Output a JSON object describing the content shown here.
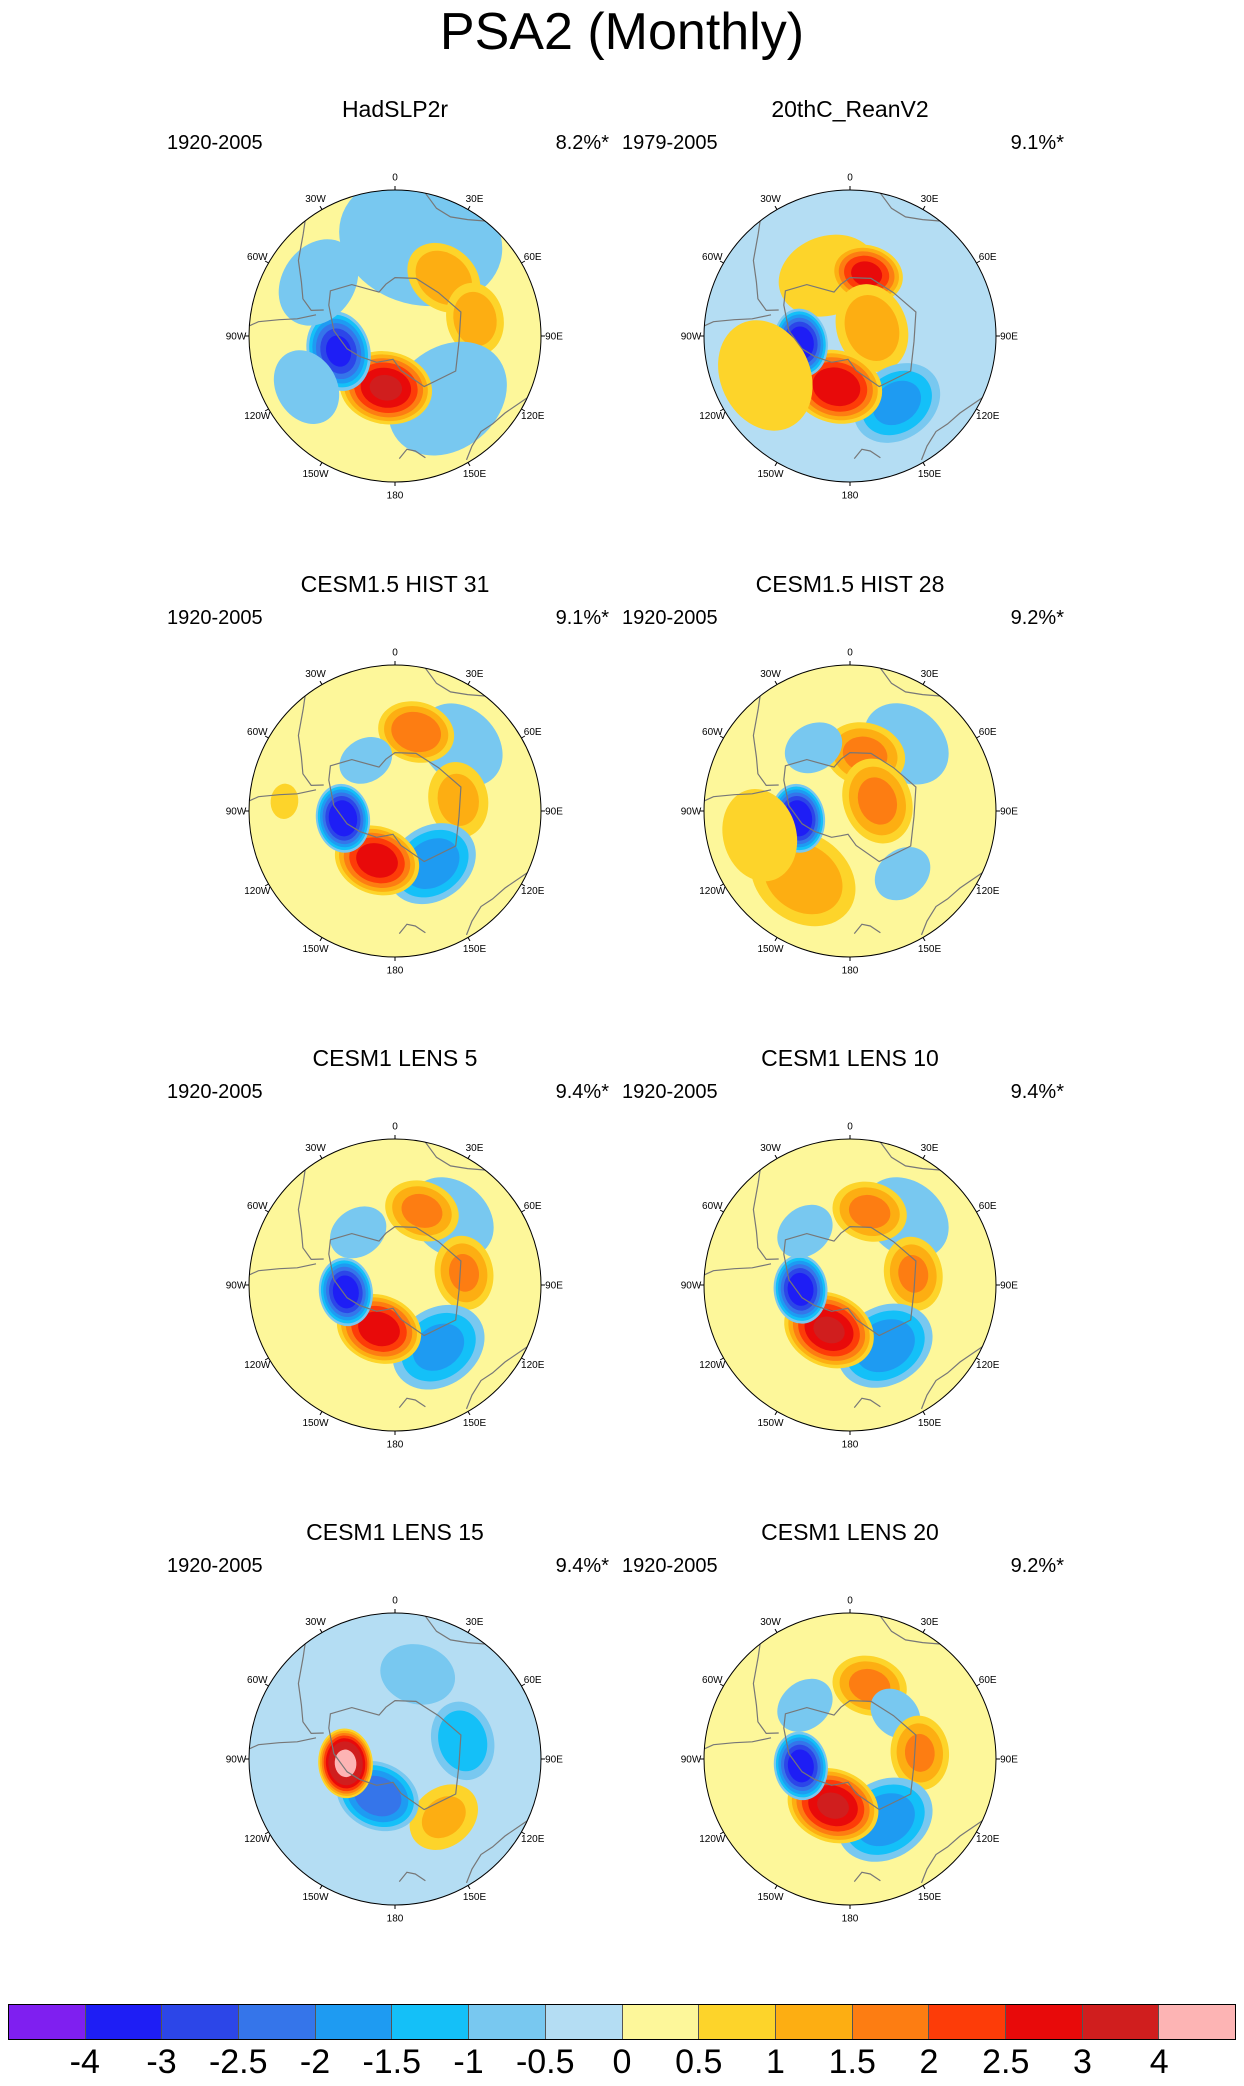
{
  "title": "PSA2 (Monthly)",
  "longitude_labels": [
    "0",
    "30E",
    "60E",
    "90E",
    "120E",
    "150E",
    "180",
    "150W",
    "120W",
    "90W",
    "60W",
    "30W"
  ],
  "colors": {
    "levels": [
      "#7f1ff0",
      "#1e1ef5",
      "#2c46e8",
      "#3575ea",
      "#1e9bf2",
      "#14c0f8",
      "#78c8f0",
      "#b4ddf3",
      "#fdf79a",
      "#fdd42a",
      "#fdae12",
      "#fd7d12",
      "#fd3c08",
      "#e80a0a",
      "#d01e1e",
      "#fdb4b4"
    ],
    "coastline": "#777777",
    "outline": "#000000"
  },
  "chart_data": [
    {
      "type": "heatmap",
      "projection": "south-polar-stereographic",
      "title": "HadSLP2r",
      "period": "1920-2005",
      "variance_explained": "8.2%*",
      "background_level": 0.25,
      "anomalies": [
        {
          "lon_deg": 15,
          "colat_deg": 34,
          "value": -0.7,
          "extent_deg": 34
        },
        {
          "lon_deg": 40,
          "colat_deg": 26,
          "value": 1.4,
          "extent_deg": 14
        },
        {
          "lon_deg": 78,
          "colat_deg": 28,
          "value": 1.3,
          "extent_deg": 13
        },
        {
          "lon_deg": 140,
          "colat_deg": 28,
          "value": -0.6,
          "extent_deg": 28
        },
        {
          "lon_deg": 190,
          "colat_deg": 18,
          "value": 3.0,
          "extent_deg": 15
        },
        {
          "lon_deg": 255,
          "colat_deg": 20,
          "value": -3.1,
          "extent_deg": 13
        },
        {
          "lon_deg": 305,
          "colat_deg": 32,
          "value": -0.6,
          "extent_deg": 20
        },
        {
          "lon_deg": 240,
          "colat_deg": 35,
          "value": -0.5,
          "extent_deg": 18
        }
      ]
    },
    {
      "type": "heatmap",
      "projection": "south-polar-stereographic",
      "title": "20thC_ReanV2",
      "period": "1979-2005",
      "variance_explained": "9.1%*",
      "background_level": -0.25,
      "anomalies": [
        {
          "lon_deg": 340,
          "colat_deg": 22,
          "value": 0.8,
          "extent_deg": 20
        },
        {
          "lon_deg": 15,
          "colat_deg": 22,
          "value": 2.6,
          "extent_deg": 12
        },
        {
          "lon_deg": 70,
          "colat_deg": 8,
          "value": 1.3,
          "extent_deg": 16
        },
        {
          "lon_deg": 145,
          "colat_deg": 28,
          "value": -1.6,
          "extent_deg": 16
        },
        {
          "lon_deg": 195,
          "colat_deg": 18,
          "value": 2.9,
          "extent_deg": 15
        },
        {
          "lon_deg": 262,
          "colat_deg": 17,
          "value": -3.4,
          "extent_deg": 11
        },
        {
          "lon_deg": 245,
          "colat_deg": 32,
          "value": 0.9,
          "extent_deg": 22
        }
      ]
    },
    {
      "type": "heatmap",
      "projection": "south-polar-stereographic",
      "title": "CESM1.5 HIST 31",
      "period": "1920-2005",
      "variance_explained": "9.1%*",
      "background_level": 0.25,
      "anomalies": [
        {
          "lon_deg": 45,
          "colat_deg": 32,
          "value": -0.6,
          "extent_deg": 20
        },
        {
          "lon_deg": 15,
          "colat_deg": 28,
          "value": 1.9,
          "extent_deg": 13
        },
        {
          "lon_deg": 80,
          "colat_deg": 22,
          "value": 1.1,
          "extent_deg": 14
        },
        {
          "lon_deg": 145,
          "colat_deg": 22,
          "value": -1.8,
          "extent_deg": 16
        },
        {
          "lon_deg": 200,
          "colat_deg": 18,
          "value": 2.8,
          "extent_deg": 14
        },
        {
          "lon_deg": 262,
          "colat_deg": 18,
          "value": -3.6,
          "extent_deg": 11
        },
        {
          "lon_deg": 330,
          "colat_deg": 20,
          "value": -0.6,
          "extent_deg": 12
        },
        {
          "lon_deg": 275,
          "colat_deg": 38,
          "value": 0.8,
          "extent_deg": 7
        }
      ]
    },
    {
      "type": "heatmap",
      "projection": "south-polar-stereographic",
      "title": "CESM1.5 HIST 28",
      "period": "1920-2005",
      "variance_explained": "9.2%*",
      "background_level": 0.25,
      "anomalies": [
        {
          "lon_deg": 40,
          "colat_deg": 30,
          "value": -0.6,
          "extent_deg": 20
        },
        {
          "lon_deg": 15,
          "colat_deg": 20,
          "value": 1.6,
          "extent_deg": 14
        },
        {
          "lon_deg": 70,
          "colat_deg": 10,
          "value": 1.6,
          "extent_deg": 15
        },
        {
          "lon_deg": 140,
          "colat_deg": 28,
          "value": -0.8,
          "extent_deg": 12
        },
        {
          "lon_deg": 215,
          "colat_deg": 28,
          "value": 1.3,
          "extent_deg": 20
        },
        {
          "lon_deg": 262,
          "colat_deg": 18,
          "value": -3.6,
          "extent_deg": 11
        },
        {
          "lon_deg": 330,
          "colat_deg": 25,
          "value": -0.5,
          "extent_deg": 14
        },
        {
          "lon_deg": 255,
          "colat_deg": 32,
          "value": 0.9,
          "extent_deg": 18
        }
      ]
    },
    {
      "type": "heatmap",
      "projection": "south-polar-stereographic",
      "title": "CESM1 LENS 5",
      "period": "1920-2005",
      "variance_explained": "9.4%*",
      "background_level": 0.25,
      "anomalies": [
        {
          "lon_deg": 40,
          "colat_deg": 30,
          "value": -0.6,
          "extent_deg": 20
        },
        {
          "lon_deg": 20,
          "colat_deg": 27,
          "value": 1.6,
          "extent_deg": 13
        },
        {
          "lon_deg": 80,
          "colat_deg": 24,
          "value": 1.5,
          "extent_deg": 13
        },
        {
          "lon_deg": 145,
          "colat_deg": 26,
          "value": -1.6,
          "extent_deg": 17
        },
        {
          "lon_deg": 200,
          "colat_deg": 16,
          "value": 2.8,
          "extent_deg": 14
        },
        {
          "lon_deg": 262,
          "colat_deg": 17,
          "value": -3.4,
          "extent_deg": 11
        },
        {
          "lon_deg": 325,
          "colat_deg": 22,
          "value": -0.5,
          "extent_deg": 14
        }
      ]
    },
    {
      "type": "heatmap",
      "projection": "south-polar-stereographic",
      "title": "CESM1 LENS 10",
      "period": "1920-2005",
      "variance_explained": "9.4%*",
      "background_level": 0.25,
      "anomalies": [
        {
          "lon_deg": 40,
          "colat_deg": 30,
          "value": -0.6,
          "extent_deg": 20
        },
        {
          "lon_deg": 15,
          "colat_deg": 26,
          "value": 1.6,
          "extent_deg": 13
        },
        {
          "lon_deg": 80,
          "colat_deg": 22,
          "value": 1.5,
          "extent_deg": 13
        },
        {
          "lon_deg": 150,
          "colat_deg": 24,
          "value": -1.8,
          "extent_deg": 17
        },
        {
          "lon_deg": 205,
          "colat_deg": 17,
          "value": 3.0,
          "extent_deg": 15
        },
        {
          "lon_deg": 265,
          "colat_deg": 17,
          "value": -3.4,
          "extent_deg": 11
        },
        {
          "lon_deg": 320,
          "colat_deg": 24,
          "value": -0.5,
          "extent_deg": 14
        }
      ]
    },
    {
      "type": "heatmap",
      "projection": "south-polar-stereographic",
      "title": "CESM1 LENS 15",
      "period": "1920-2005",
      "variance_explained": "9.4%*",
      "background_level": -0.25,
      "anomalies": [
        {
          "lon_deg": 340,
          "colat_deg": 38,
          "value": 0.25,
          "extent_deg": 18
        },
        {
          "lon_deg": 15,
          "colat_deg": 30,
          "value": -0.8,
          "extent_deg": 15
        },
        {
          "lon_deg": 75,
          "colat_deg": 24,
          "value": -1.4,
          "extent_deg": 14
        },
        {
          "lon_deg": 140,
          "colat_deg": 26,
          "value": 1.0,
          "extent_deg": 14
        },
        {
          "lon_deg": 205,
          "colat_deg": 14,
          "value": -2.4,
          "extent_deg": 14
        },
        {
          "lon_deg": 265,
          "colat_deg": 17,
          "value": 4.3,
          "extent_deg": 11
        },
        {
          "lon_deg": 300,
          "colat_deg": 30,
          "value": 0.3,
          "extent_deg": 14
        }
      ]
    },
    {
      "type": "heatmap",
      "projection": "south-polar-stereographic",
      "title": "CESM1 LENS 20",
      "period": "1920-2005",
      "variance_explained": "9.2%*",
      "background_level": 0.25,
      "anomalies": [
        {
          "lon_deg": 15,
          "colat_deg": 26,
          "value": 1.6,
          "extent_deg": 13
        },
        {
          "lon_deg": 45,
          "colat_deg": 22,
          "value": -0.6,
          "extent_deg": 12
        },
        {
          "lon_deg": 85,
          "colat_deg": 24,
          "value": 1.5,
          "extent_deg": 13
        },
        {
          "lon_deg": 150,
          "colat_deg": 24,
          "value": -1.8,
          "extent_deg": 17
        },
        {
          "lon_deg": 200,
          "colat_deg": 17,
          "value": 3.0,
          "extent_deg": 15
        },
        {
          "lon_deg": 262,
          "colat_deg": 17,
          "value": -3.4,
          "extent_deg": 11
        },
        {
          "lon_deg": 320,
          "colat_deg": 24,
          "value": -0.5,
          "extent_deg": 14
        }
      ]
    }
  ],
  "colorbar": {
    "labels": [
      "-4",
      "-3",
      "-2.5",
      "-2",
      "-1.5",
      "-1",
      "-0.5",
      "0",
      "0.5",
      "1",
      "1.5",
      "2",
      "2.5",
      "3",
      "4"
    ]
  }
}
